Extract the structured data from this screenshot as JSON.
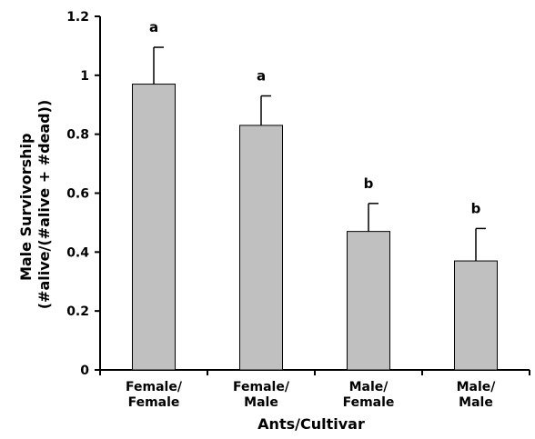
{
  "chart_data": {
    "type": "bar",
    "categories": [
      [
        "Female/",
        "Female"
      ],
      [
        "Female/",
        "Male"
      ],
      [
        "Male/",
        "Female"
      ],
      [
        "Male/",
        "Male"
      ]
    ],
    "values": [
      0.97,
      0.83,
      0.47,
      0.37
    ],
    "error_bars": [
      0.125,
      0.1,
      0.095,
      0.11
    ],
    "significance_labels": [
      "a",
      "a",
      "b",
      "b"
    ],
    "xlabel": "Ants/Cultivar",
    "ylabel": [
      "Male Survivorship",
      "(#alive/(#alive + #dead))"
    ],
    "ylim": [
      0,
      1.2
    ],
    "yticks": [
      "0",
      "0.2",
      "0.4",
      "0.6",
      "0.8",
      "1",
      "1.2"
    ],
    "grid": false,
    "colors": {
      "bar_fill": "#c0c0c0",
      "bar_stroke": "#000000"
    }
  }
}
